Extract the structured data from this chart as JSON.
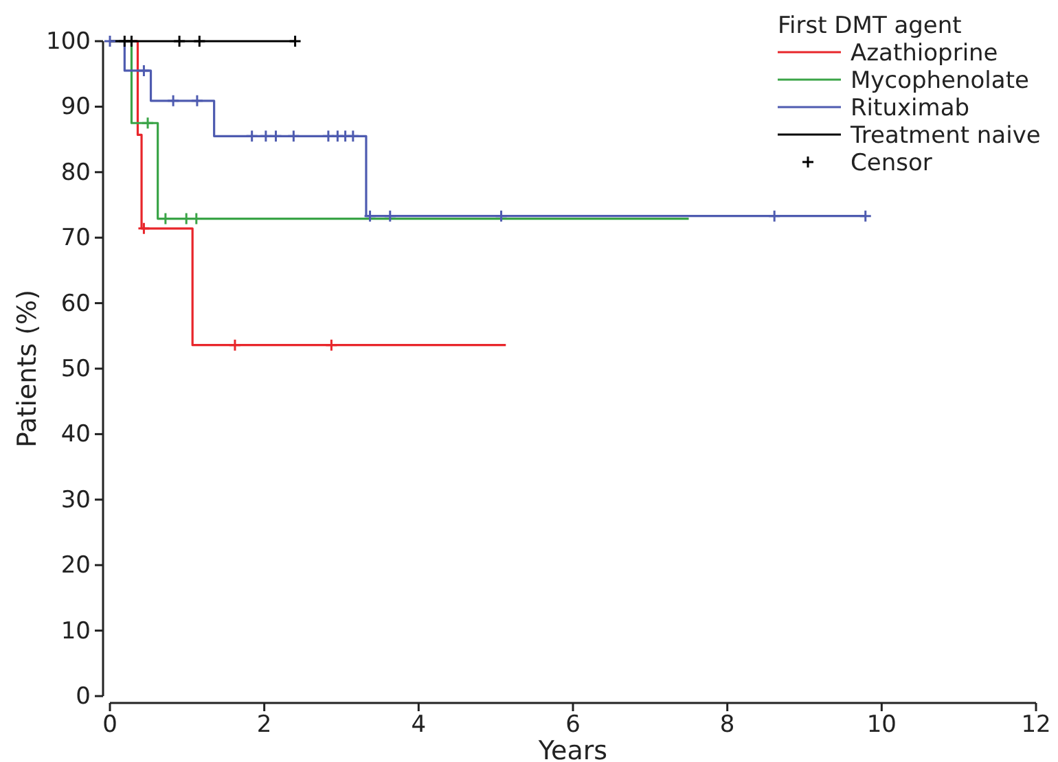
{
  "chart_data": {
    "type": "step",
    "xlabel": "Years",
    "ylabel": "Patients (%)",
    "legend_title": "First DMT agent",
    "legend": "top right",
    "grid": false,
    "xlim": [
      0,
      12
    ],
    "xticks": [
      0,
      2,
      4,
      6,
      8,
      10,
      12
    ],
    "ylim": [
      0,
      100
    ],
    "yticks": [
      0,
      10,
      20,
      30,
      40,
      50,
      60,
      70,
      80,
      90,
      100
    ],
    "series": [
      {
        "name": "Azathioprine",
        "color": "#e8262b",
        "x": [
          0,
          0.36,
          0.41,
          1.07,
          5.13
        ],
        "values": [
          100,
          85.7,
          71.4,
          53.6,
          53.6
        ]
      },
      {
        "name": "Mycophenolate",
        "color": "#3aa447",
        "x": [
          0,
          0.28,
          0.62,
          7.5
        ],
        "values": [
          100,
          87.5,
          72.9,
          72.9
        ]
      },
      {
        "name": "Rituximab",
        "color": "#4e5bb0",
        "x": [
          0,
          0.19,
          0.53,
          1.35,
          3.32,
          9.79
        ],
        "values": [
          100,
          95.5,
          90.9,
          85.5,
          73.3,
          73.3
        ]
      },
      {
        "name": "Treatment naive",
        "color": "#000000",
        "x": [
          0,
          2.4
        ],
        "values": [
          100,
          100
        ]
      },
      {
        "color": "#e8262b",
        "type": "scatter",
        "marker": "cross",
        "x": [
          0.44,
          1.62,
          2.87
        ],
        "values": [
          71.4,
          53.6,
          53.6
        ]
      },
      {
        "color": "#3aa447",
        "type": "scatter",
        "marker": "cross",
        "x": [
          0.49,
          0.72,
          0.99,
          1.12
        ],
        "values": [
          87.5,
          72.9,
          72.9,
          72.9
        ]
      },
      {
        "color": "#4e5bb0",
        "type": "scatter",
        "marker": "cross",
        "x": [
          0,
          0.44,
          0.82,
          1.13,
          1.84,
          2.02,
          2.15,
          2.38,
          2.83,
          2.95,
          3.05,
          3.15,
          3.37,
          3.63,
          5.07,
          8.61,
          9.79
        ],
        "values": [
          100,
          95.5,
          90.9,
          90.9,
          85.5,
          85.5,
          85.5,
          85.5,
          85.5,
          85.5,
          85.5,
          85.5,
          73.3,
          73.3,
          73.3,
          73.3,
          73.3
        ]
      },
      {
        "name": "Censor",
        "color": "#000000",
        "type": "scatter",
        "marker": "cross",
        "x": [
          0.19,
          0.28,
          0.9,
          1.16,
          2.4
        ],
        "values": [
          100,
          100,
          100,
          100,
          100
        ]
      }
    ]
  }
}
